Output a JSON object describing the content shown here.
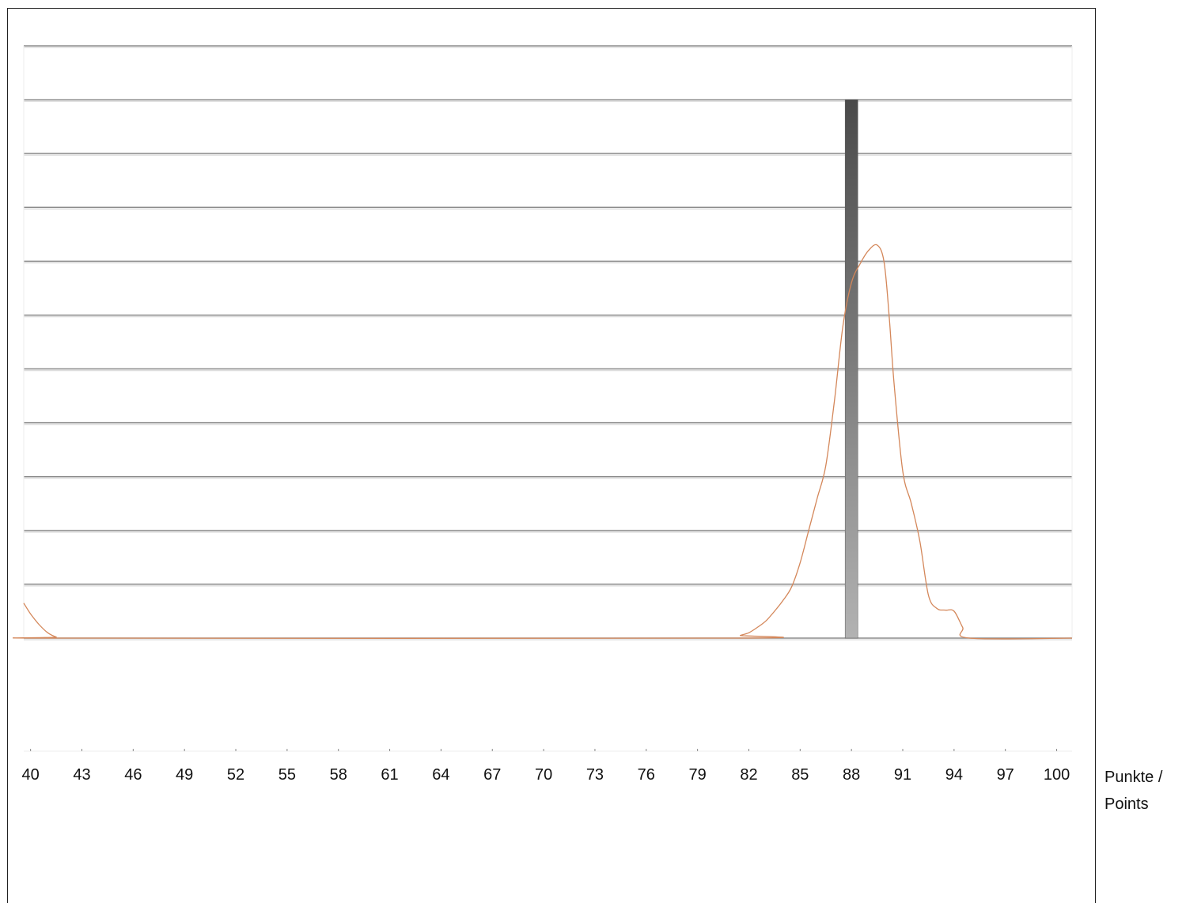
{
  "chart_data": {
    "type": "bar",
    "x_unit_label": "Punkte /\nPoints",
    "xlim": [
      39.6,
      100.9
    ],
    "ylim": [
      0,
      10
    ],
    "grid": true,
    "x_ticks": [
      40,
      43,
      46,
      49,
      52,
      55,
      58,
      61,
      64,
      67,
      70,
      73,
      76,
      79,
      82,
      85,
      88,
      91,
      94,
      97,
      100
    ],
    "bars": [
      {
        "x": 88,
        "value": 10,
        "color_top": "#4a4a4a",
        "color_bottom": "#b2b2b2"
      }
    ],
    "density_curve": {
      "color": "#d4875a",
      "points": [
        [
          39.6,
          0.65
        ],
        [
          40.0,
          0.45
        ],
        [
          40.5,
          0.25
        ],
        [
          41.0,
          0.1
        ],
        [
          41.5,
          0.02
        ],
        [
          42.0,
          0
        ],
        [
          81.0,
          0
        ],
        [
          81.5,
          0.05
        ],
        [
          82.0,
          0.1
        ],
        [
          82.5,
          0.2
        ],
        [
          83.0,
          0.32
        ],
        [
          83.5,
          0.5
        ],
        [
          84.0,
          0.7
        ],
        [
          84.5,
          0.95
        ],
        [
          85.0,
          1.4
        ],
        [
          85.5,
          2.0
        ],
        [
          86.0,
          2.6
        ],
        [
          86.5,
          3.2
        ],
        [
          87.0,
          4.4
        ],
        [
          87.5,
          5.8
        ],
        [
          88.0,
          6.6
        ],
        [
          88.5,
          6.95
        ],
        [
          89.0,
          7.2
        ],
        [
          89.5,
          7.3
        ],
        [
          89.9,
          7.0
        ],
        [
          90.2,
          6.0
        ],
        [
          90.5,
          4.7
        ],
        [
          91.0,
          3.1
        ],
        [
          91.5,
          2.5
        ],
        [
          92.0,
          1.8
        ],
        [
          92.5,
          0.8
        ],
        [
          93.0,
          0.55
        ],
        [
          93.5,
          0.52
        ],
        [
          94.0,
          0.5
        ],
        [
          94.5,
          0.2
        ],
        [
          94.9,
          0
        ],
        [
          100.9,
          0
        ]
      ]
    }
  }
}
